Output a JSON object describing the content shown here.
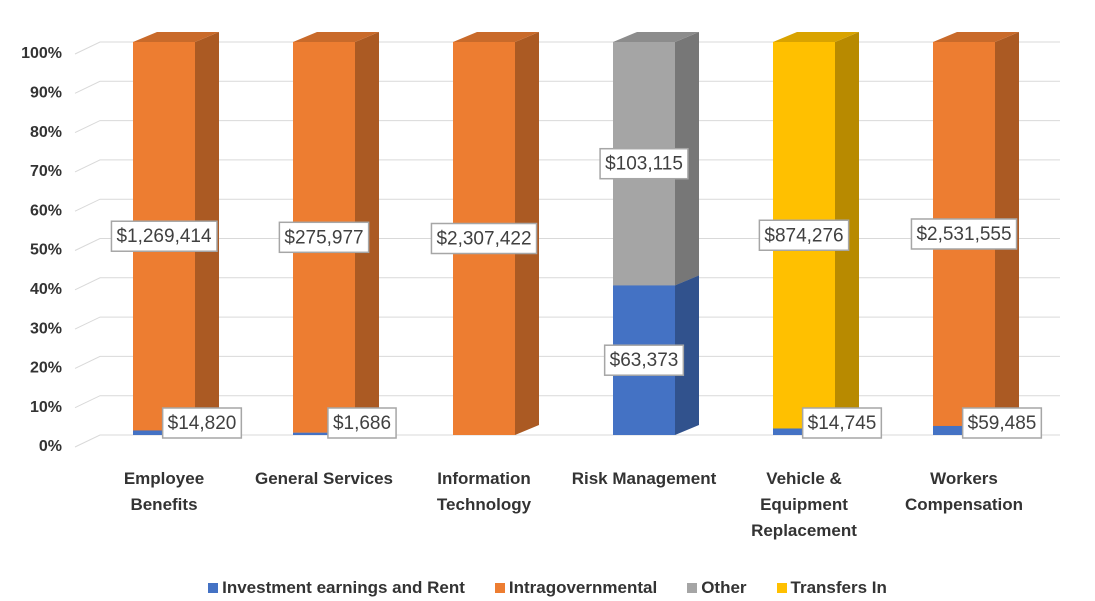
{
  "chart_data": {
    "type": "bar",
    "stack": "percent",
    "categories": [
      "Employee Benefits",
      "General Services",
      "Information Technology",
      "Risk Management",
      "Vehicle & Equipment Replacement",
      "Workers Compensation"
    ],
    "series": [
      {
        "name": "Investment earnings and Rent",
        "color": "#4472c4",
        "values": [
          14820,
          1686,
          null,
          63373,
          14745,
          59485
        ],
        "value_labels": [
          "$14,820",
          "$1,686",
          null,
          "$63,373",
          "$14,745",
          "$59,485"
        ]
      },
      {
        "name": "Intragovernmental",
        "color": "#ed7d31",
        "values": [
          1269414,
          275977,
          2307422,
          null,
          null,
          2531555
        ],
        "value_labels": [
          "$1,269,414",
          "$275,977",
          "$2,307,422",
          null,
          null,
          "$2,531,555"
        ]
      },
      {
        "name": "Other",
        "color": "#a5a5a5",
        "values": [
          null,
          null,
          null,
          103115,
          null,
          null
        ],
        "value_labels": [
          null,
          null,
          null,
          "$103,115",
          null,
          null
        ]
      },
      {
        "name": "Transfers In",
        "color": "#ffc000",
        "values": [
          null,
          null,
          null,
          null,
          874276,
          null
        ],
        "value_labels": [
          null,
          null,
          null,
          null,
          "$874,276",
          null
        ]
      }
    ],
    "ylim": [
      0,
      100
    ],
    "yticks": [
      {
        "value": 0,
        "label": "0%"
      },
      {
        "value": 10,
        "label": "10%"
      },
      {
        "value": 20,
        "label": "20%"
      },
      {
        "value": 30,
        "label": "30%"
      },
      {
        "value": 40,
        "label": "40%"
      },
      {
        "value": 50,
        "label": "50%"
      },
      {
        "value": 60,
        "label": "60%"
      },
      {
        "value": 70,
        "label": "70%"
      },
      {
        "value": 80,
        "label": "80%"
      },
      {
        "value": 90,
        "label": "90%"
      },
      {
        "value": 100,
        "label": "100%"
      }
    ],
    "grid": true,
    "legend": "bottom"
  }
}
